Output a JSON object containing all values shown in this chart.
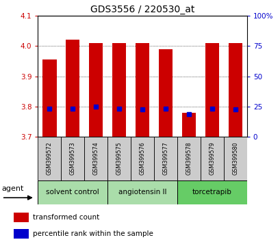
{
  "title": "GDS3556 / 220530_at",
  "samples": [
    "GSM399572",
    "GSM399573",
    "GSM399574",
    "GSM399575",
    "GSM399576",
    "GSM399577",
    "GSM399578",
    "GSM399579",
    "GSM399580"
  ],
  "bar_tops": [
    3.955,
    4.02,
    4.01,
    4.01,
    4.01,
    3.99,
    3.78,
    4.01,
    4.01
  ],
  "bar_bottoms": [
    3.7,
    3.7,
    3.7,
    3.7,
    3.7,
    3.7,
    3.7,
    3.7,
    3.7
  ],
  "blue_positions": [
    3.793,
    3.793,
    3.8,
    3.793,
    3.791,
    3.793,
    3.775,
    3.793,
    3.791
  ],
  "bar_color": "#cc0000",
  "blue_color": "#0000cc",
  "ylim": [
    3.7,
    4.1
  ],
  "yticks_left": [
    3.7,
    3.8,
    3.9,
    4.0,
    4.1
  ],
  "yticks_right": [
    0,
    25,
    50,
    75,
    100
  ],
  "ytick_labels_right": [
    "0",
    "25",
    "50",
    "75",
    "100%"
  ],
  "groups": [
    {
      "label": "solvent control",
      "samples": [
        0,
        1,
        2
      ],
      "color": "#aaddaa"
    },
    {
      "label": "angiotensin II",
      "samples": [
        3,
        4,
        5
      ],
      "color": "#aaddaa"
    },
    {
      "label": "torcetrapib",
      "samples": [
        6,
        7,
        8
      ],
      "color": "#66cc66"
    }
  ],
  "agent_label": "agent",
  "legend1": "transformed count",
  "legend2": "percentile rank within the sample",
  "grid_color": "#000000",
  "background_label": "#cccccc",
  "xlabel_color": "#cc0000",
  "ylabel_right_color": "#0000cc",
  "bar_width": 0.6
}
